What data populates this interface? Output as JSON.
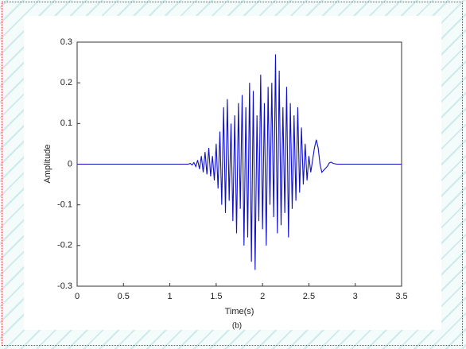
{
  "chart_data": {
    "type": "line",
    "caption": "(b)",
    "xlabel": "Time(s)",
    "ylabel": "Amplitude",
    "x": [
      0,
      1.1,
      1.2,
      1.22,
      1.24,
      1.26,
      1.28,
      1.3,
      1.32,
      1.34,
      1.36,
      1.38,
      1.4,
      1.42,
      1.44,
      1.46,
      1.48,
      1.5,
      1.52,
      1.54,
      1.56,
      1.58,
      1.6,
      1.62,
      1.64,
      1.66,
      1.68,
      1.7,
      1.72,
      1.74,
      1.76,
      1.78,
      1.8,
      1.82,
      1.84,
      1.86,
      1.88,
      1.9,
      1.92,
      1.94,
      1.96,
      1.98,
      2.0,
      2.02,
      2.04,
      2.06,
      2.08,
      2.1,
      2.12,
      2.14,
      2.16,
      2.18,
      2.2,
      2.22,
      2.24,
      2.26,
      2.28,
      2.3,
      2.32,
      2.34,
      2.36,
      2.38,
      2.4,
      2.42,
      2.44,
      2.46,
      2.48,
      2.5,
      2.52,
      2.54,
      2.56,
      2.58,
      2.6,
      2.62,
      2.64,
      2.66,
      2.68,
      2.7,
      2.72,
      2.74,
      2.76,
      2.8,
      3.5
    ],
    "y": [
      0,
      0,
      0,
      0.002,
      -0.002,
      0.004,
      -0.006,
      0.01,
      -0.012,
      0.02,
      -0.02,
      0.03,
      -0.025,
      0.04,
      -0.03,
      0.02,
      -0.04,
      0.05,
      -0.06,
      0.08,
      -0.1,
      0.14,
      -0.12,
      0.16,
      -0.09,
      0.1,
      -0.14,
      0.12,
      -0.17,
      0.15,
      -0.11,
      0.17,
      -0.2,
      0.14,
      -0.18,
      0.2,
      -0.24,
      0.18,
      -0.26,
      0.12,
      -0.14,
      0.22,
      -0.16,
      0.15,
      -0.2,
      0.19,
      -0.1,
      0.2,
      -0.13,
      0.27,
      -0.17,
      0.23,
      -0.15,
      0.14,
      -0.12,
      0.19,
      -0.18,
      0.15,
      -0.11,
      0.12,
      -0.09,
      0.14,
      -0.07,
      0.09,
      -0.05,
      0.05,
      -0.04,
      0.02,
      -0.02,
      0.01,
      0.04,
      0.06,
      0.04,
      0,
      -0.02,
      -0.015,
      -0.01,
      -0.005,
      0.003,
      0.005,
      0.002,
      0,
      0
    ],
    "color": "#1010c8",
    "xlim": [
      0,
      3.5
    ],
    "xticks": [
      0,
      0.5,
      1,
      1.5,
      2,
      2.5,
      3,
      3.5
    ],
    "ylim": [
      -0.3,
      0.3
    ],
    "yticks": [
      -0.3,
      -0.2,
      -0.1,
      0,
      0.1,
      0.2,
      0.3
    ]
  }
}
